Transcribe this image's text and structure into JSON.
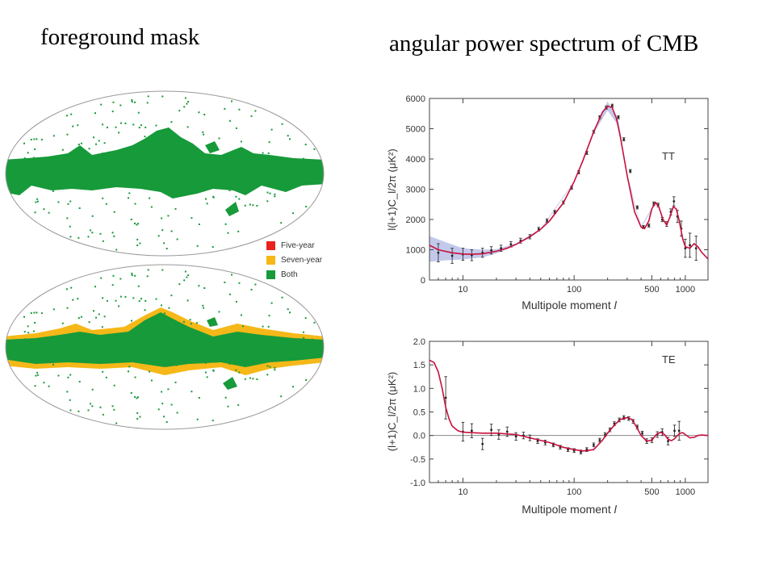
{
  "slide": {
    "title_left": "foreground mask",
    "title_right": "angular power spectrum of CMB"
  },
  "legend": {
    "items": [
      {
        "label": "Five-year",
        "color": "#e8231e"
      },
      {
        "label": "Seven-year",
        "color": "#f5b818"
      },
      {
        "label": "Both",
        "color": "#179a3a"
      }
    ]
  },
  "colors": {
    "model_curve": "#c8103e",
    "band": "#b9bfe6",
    "mask_green": "#179a3a",
    "mask_yellow": "#f5b818"
  },
  "chart_data": [
    {
      "type": "line",
      "panel_label": "TT",
      "xlabel": "Multipole moment",
      "xlabel_symbol": "l",
      "ylabel": "l(l+1)C_l/2π (μK²)",
      "xscale": "log",
      "xlim": [
        5,
        1600
      ],
      "ylim": [
        0,
        6000
      ],
      "xticks": [
        10,
        100,
        500,
        1000
      ],
      "xtick_labels": [
        "10",
        "100",
        "500",
        "1000"
      ],
      "yticks": [
        0,
        1000,
        2000,
        3000,
        4000,
        5000,
        6000
      ],
      "ytick_labels": [
        "0",
        "1000",
        "2000",
        "3000",
        "4000",
        "5000",
        "6000"
      ],
      "model": {
        "x": [
          5,
          6,
          8,
          10,
          12,
          15,
          20,
          25,
          30,
          40,
          50,
          60,
          80,
          100,
          120,
          150,
          180,
          200,
          220,
          240,
          260,
          300,
          350,
          400,
          430,
          470,
          500,
          540,
          580,
          630,
          680,
          730,
          780,
          830,
          880,
          950,
          1000,
          1100,
          1200,
          1300,
          1400,
          1600
        ],
        "y": [
          1150,
          1000,
          900,
          860,
          850,
          870,
          950,
          1050,
          1180,
          1430,
          1680,
          1950,
          2550,
          3250,
          3950,
          4900,
          5550,
          5750,
          5700,
          5350,
          4750,
          3450,
          2250,
          1750,
          1700,
          1950,
          2350,
          2560,
          2400,
          2000,
          1820,
          2100,
          2420,
          2350,
          1980,
          1350,
          1100,
          1050,
          1200,
          1100,
          920,
          700
        ]
      },
      "band": {
        "x": [
          5,
          7,
          10,
          15,
          20,
          30,
          50,
          100,
          150,
          200,
          250,
          300,
          400,
          500
        ],
        "upper": [
          1450,
          1250,
          1050,
          1000,
          1020,
          1210,
          1700,
          3270,
          4950,
          5900,
          5300,
          3500,
          1780,
          2380
        ],
        "lower": [
          600,
          650,
          680,
          750,
          880,
          1150,
          1660,
          3230,
          4850,
          5600,
          5100,
          3400,
          1720,
          2320
        ]
      },
      "points": {
        "x": [
          6,
          8,
          10,
          12,
          15,
          18,
          22,
          27,
          33,
          40,
          48,
          57,
          67,
          80,
          95,
          110,
          130,
          150,
          170,
          195,
          220,
          250,
          280,
          320,
          370,
          420,
          470,
          520,
          570,
          620,
          680,
          740,
          790,
          850,
          920,
          1000,
          1100,
          1250
        ],
        "y": [
          900,
          800,
          850,
          820,
          900,
          980,
          1050,
          1180,
          1300,
          1430,
          1680,
          1960,
          2250,
          2560,
          3050,
          3560,
          4200,
          4900,
          5380,
          5700,
          5760,
          5380,
          4650,
          3600,
          2400,
          1750,
          1800,
          2520,
          2480,
          2000,
          1850,
          2250,
          2600,
          2100,
          1700,
          1050,
          1150,
          1050
        ],
        "err": [
          300,
          250,
          200,
          180,
          150,
          120,
          100,
          90,
          80,
          70,
          60,
          60,
          50,
          50,
          50,
          50,
          50,
          50,
          50,
          50,
          50,
          50,
          50,
          50,
          50,
          50,
          50,
          60,
          60,
          70,
          80,
          100,
          150,
          200,
          250,
          300,
          400,
          400
        ]
      }
    },
    {
      "type": "line",
      "panel_label": "TE",
      "xlabel": "Multipole moment",
      "xlabel_symbol": "l",
      "ylabel": "(l+1)C_l/2π (μK²)",
      "xscale": "log",
      "xlim": [
        5,
        1600
      ],
      "ylim": [
        -1.0,
        2.0
      ],
      "xticks": [
        10,
        100,
        500,
        1000
      ],
      "xtick_labels": [
        "10",
        "100",
        "500",
        "1000"
      ],
      "yticks": [
        -1.0,
        -0.5,
        0.0,
        0.5,
        1.0,
        1.5,
        2.0
      ],
      "ytick_labels": [
        "-1.0",
        "-0.5",
        "0.0",
        "0.5",
        "1.0",
        "1.5",
        "2.0"
      ],
      "model": {
        "x": [
          5,
          5.5,
          6,
          6.5,
          7,
          7.5,
          8,
          9,
          10,
          12,
          15,
          20,
          30,
          40,
          60,
          80,
          100,
          120,
          150,
          180,
          200,
          230,
          260,
          300,
          330,
          360,
          400,
          450,
          500,
          550,
          600,
          650,
          700,
          750,
          800,
          850,
          900,
          950,
          1000,
          1100,
          1200,
          1300,
          1400,
          1600
        ],
        "y": [
          1.6,
          1.55,
          1.35,
          1.0,
          0.6,
          0.35,
          0.2,
          0.1,
          0.07,
          0.06,
          0.05,
          0.05,
          0.02,
          -0.05,
          -0.15,
          -0.25,
          -0.3,
          -0.33,
          -0.3,
          -0.1,
          0.05,
          0.22,
          0.34,
          0.38,
          0.34,
          0.2,
          0.0,
          -0.12,
          -0.1,
          0.02,
          0.07,
          0.02,
          -0.08,
          -0.11,
          -0.07,
          0.0,
          0.05,
          0.06,
          0.02,
          -0.05,
          -0.04,
          0.0,
          0.01,
          0.0
        ]
      },
      "points": {
        "x": [
          7,
          10,
          12,
          15,
          18,
          21,
          25,
          30,
          35,
          40,
          47,
          55,
          65,
          75,
          88,
          100,
          115,
          130,
          150,
          170,
          190,
          210,
          230,
          255,
          280,
          310,
          340,
          370,
          410,
          450,
          500,
          560,
          620,
          700,
          800,
          880
        ],
        "y": [
          0.8,
          0.08,
          0.1,
          -0.18,
          0.12,
          0.02,
          0.08,
          -0.02,
          0.0,
          -0.05,
          -0.12,
          -0.15,
          -0.2,
          -0.25,
          -0.3,
          -0.32,
          -0.35,
          -0.3,
          -0.2,
          -0.1,
          0.02,
          0.12,
          0.25,
          0.33,
          0.38,
          0.36,
          0.3,
          0.18,
          0.05,
          -0.12,
          -0.1,
          0.02,
          0.07,
          -0.12,
          0.1,
          0.1
        ],
        "err": [
          0.45,
          0.2,
          0.15,
          0.12,
          0.12,
          0.1,
          0.1,
          0.08,
          0.07,
          0.06,
          0.05,
          0.05,
          0.04,
          0.04,
          0.04,
          0.04,
          0.04,
          0.04,
          0.04,
          0.04,
          0.04,
          0.04,
          0.04,
          0.04,
          0.04,
          0.04,
          0.04,
          0.04,
          0.04,
          0.05,
          0.05,
          0.06,
          0.07,
          0.08,
          0.12,
          0.2
        ]
      }
    }
  ]
}
